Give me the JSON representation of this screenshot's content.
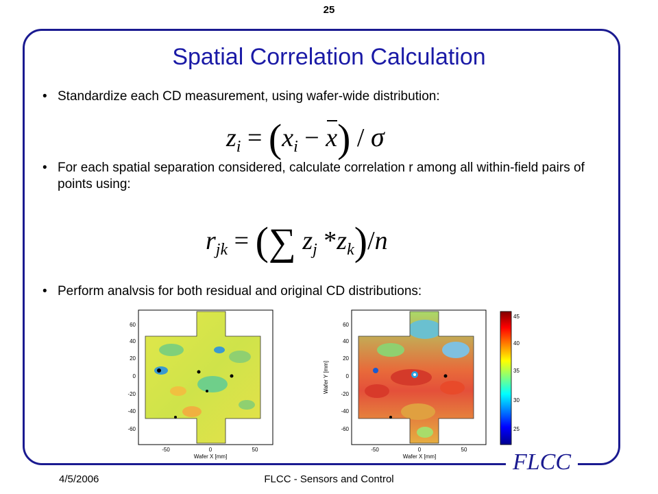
{
  "slide": {
    "number": "25",
    "title": "Spatial Correlation Calculation",
    "bullets": [
      "Standardize each CD measurement, using wafer-wide distribution:",
      "For each spatial separation considered, calculate correlation r among all within-field pairs of points using:",
      "Perform analvsis for both residual and original CD distributions:"
    ],
    "bullet_symbol": "•"
  },
  "equations": {
    "eq1": {
      "lhs": "z",
      "lhs_sub": "i",
      "equals": "=",
      "x": "x",
      "x_sub": "i",
      "minus": "−",
      "xbar": "x",
      "div": "/",
      "sigma": "σ"
    },
    "eq2": {
      "lhs": "r",
      "lhs_sub": "jk",
      "equals": "=",
      "sum": "∑",
      "z1": "z",
      "z1_sub": "j",
      "times": "*",
      "z2": "z",
      "z2_sub": "k",
      "div": "/",
      "n": "n"
    }
  },
  "plots": {
    "left": {
      "xlabel": "Wafer X [mm]",
      "ylabel": "",
      "yticks": [
        "60",
        "40",
        "20",
        "0",
        "-20",
        "-40",
        "-60"
      ],
      "xticks": [
        "-50",
        "0",
        "50"
      ]
    },
    "right": {
      "xlabel": "Wafer X [mm]",
      "ylabel": "Wafer Y [mm]",
      "yticks": [
        "60",
        "40",
        "20",
        "0",
        "-20",
        "-40",
        "-60"
      ],
      "xticks": [
        "-50",
        "0",
        "50"
      ]
    },
    "colorbar": {
      "ticks": [
        "45",
        "40",
        "35",
        "30",
        "25"
      ]
    }
  },
  "footer": {
    "date": "4/5/2006",
    "center": "FLCC - Sensors and Control",
    "logo": "FLCC"
  }
}
